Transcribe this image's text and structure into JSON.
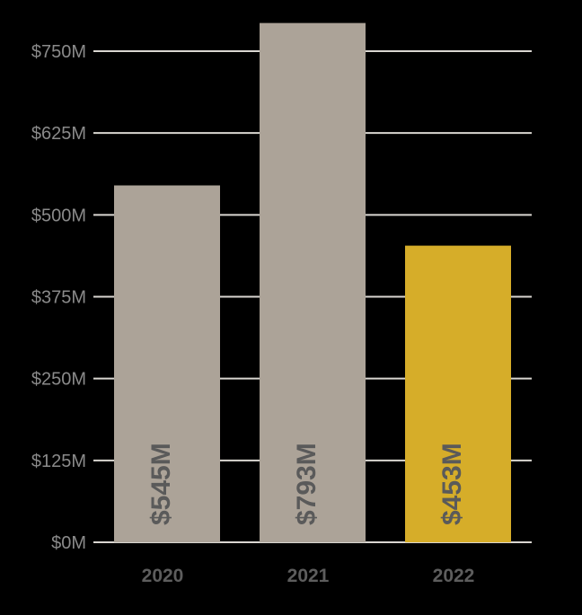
{
  "chart_data": {
    "type": "bar",
    "categories": [
      "2020",
      "2021",
      "2022"
    ],
    "values": [
      545,
      793,
      453
    ],
    "value_labels": [
      "$545M",
      "$793M",
      "$453M"
    ],
    "unit": "$M",
    "y_ticks": [
      0,
      125,
      250,
      375,
      500,
      625,
      750
    ],
    "y_tick_labels": [
      "$0M",
      "$125M",
      "$250M",
      "$375M",
      "$500M",
      "$625M",
      "$750M"
    ],
    "ylim": [
      0,
      800
    ],
    "grid": true,
    "colors": {
      "background": "#000000",
      "bar_default": "#aca398",
      "bar_highlight": "#d6ad29",
      "gridline": "#d9d6d1",
      "tick_label": "#8a8a8a",
      "category_label": "#5d5d5d",
      "value_label": "#5a5a5a"
    },
    "highlight_index": 2
  }
}
